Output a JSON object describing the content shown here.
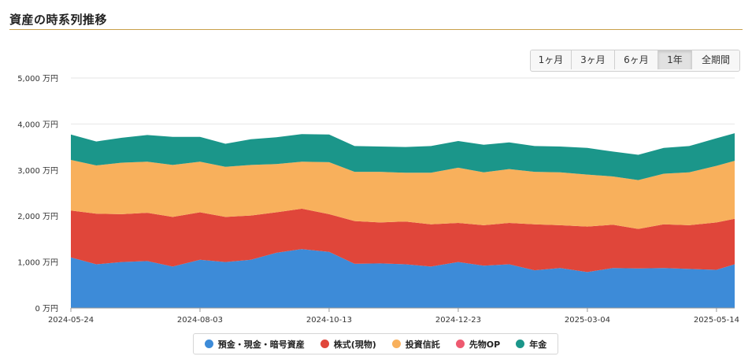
{
  "page_title": "資産の時系列推移",
  "range_buttons": [
    {
      "label": "1ヶ月",
      "active": false
    },
    {
      "label": "3ヶ月",
      "active": false
    },
    {
      "label": "6ヶ月",
      "active": false
    },
    {
      "label": "1年",
      "active": true
    },
    {
      "label": "全期間",
      "active": false
    }
  ],
  "chart_data": {
    "type": "area",
    "stacked": true,
    "title": "",
    "xlabel": "",
    "ylabel": "",
    "ylim": [
      0,
      5000
    ],
    "y_ticks": [
      "0 万円",
      "1,000 万円",
      "2,000 万円",
      "3,000 万円",
      "4,000 万円",
      "5,000 万円"
    ],
    "x_tick_labels": [
      "2024-05-24",
      "2024-08-03",
      "2024-10-13",
      "2024-12-23",
      "2025-03-04",
      "2025-05-14"
    ],
    "x": [
      "2024-05-24",
      "2024-06-07",
      "2024-06-21",
      "2024-07-05",
      "2024-07-19",
      "2024-08-03",
      "2024-08-17",
      "2024-08-31",
      "2024-09-14",
      "2024-09-28",
      "2024-10-13",
      "2024-10-27",
      "2024-11-10",
      "2024-11-24",
      "2024-12-08",
      "2024-12-23",
      "2025-01-06",
      "2025-01-20",
      "2025-02-03",
      "2025-02-17",
      "2025-03-04",
      "2025-03-18",
      "2025-04-01",
      "2025-04-15",
      "2025-04-29",
      "2025-05-14",
      "2025-05-24"
    ],
    "grid": true,
    "legend_position": "bottom",
    "series": [
      {
        "name": "預金・現金・暗号資産",
        "color": "#3d8bd8",
        "values": [
          1100,
          950,
          1000,
          1020,
          900,
          1050,
          1000,
          1050,
          1200,
          1280,
          1220,
          960,
          970,
          950,
          900,
          1000,
          920,
          950,
          820,
          870,
          780,
          870,
          860,
          870,
          850,
          830,
          950
        ]
      },
      {
        "name": "株式(現物)",
        "color": "#e0463a",
        "values": [
          1020,
          1100,
          1040,
          1050,
          1080,
          1030,
          980,
          960,
          880,
          880,
          820,
          930,
          890,
          930,
          920,
          850,
          880,
          900,
          1000,
          930,
          990,
          940,
          860,
          950,
          950,
          1030,
          990
        ]
      },
      {
        "name": "投資信託",
        "color": "#f8b05c",
        "values": [
          1100,
          1050,
          1120,
          1110,
          1130,
          1100,
          1090,
          1100,
          1050,
          1020,
          1130,
          1070,
          1100,
          1060,
          1120,
          1200,
          1150,
          1170,
          1140,
          1150,
          1130,
          1050,
          1060,
          1100,
          1150,
          1230,
          1260
        ]
      },
      {
        "name": "先物OP",
        "color": "#ee5a70",
        "values": [
          0,
          0,
          0,
          0,
          0,
          0,
          0,
          0,
          0,
          0,
          0,
          0,
          0,
          0,
          0,
          0,
          0,
          0,
          0,
          0,
          0,
          0,
          0,
          0,
          0,
          0,
          0
        ]
      },
      {
        "name": "年金",
        "color": "#1b968a",
        "values": [
          550,
          520,
          540,
          580,
          610,
          540,
          500,
          560,
          580,
          600,
          600,
          560,
          550,
          560,
          580,
          580,
          600,
          580,
          560,
          560,
          580,
          540,
          550,
          560,
          570,
          600,
          600
        ]
      }
    ]
  }
}
